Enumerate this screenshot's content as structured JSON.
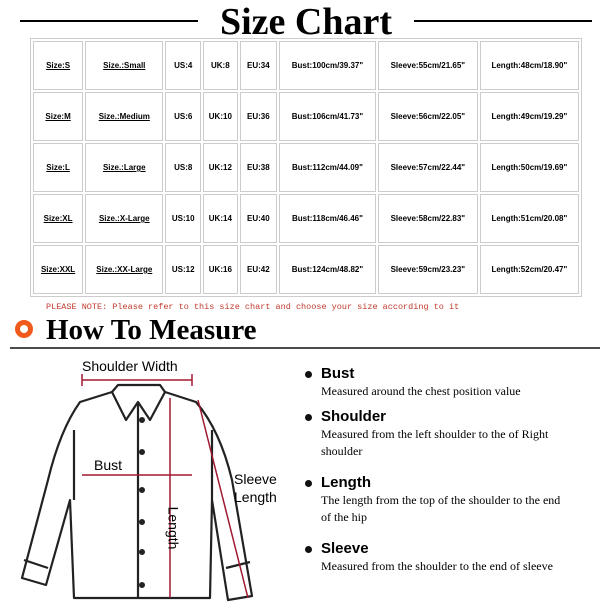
{
  "title": "Size Chart",
  "table": {
    "rows": [
      [
        "Size:S",
        "Size.:Small",
        "US:4",
        "UK:8",
        "EU:34",
        "Bust:100cm/39.37\"",
        "Sleeve:55cm/21.65\"",
        "Length:48cm/18.90\""
      ],
      [
        "Size:M",
        "Size.:Medium",
        "US:6",
        "UK:10",
        "EU:36",
        "Bust:106cm/41.73\"",
        "Sleeve:56cm/22.05\"",
        "Length:49cm/19.29\""
      ],
      [
        "Size:L",
        "Size.:Large",
        "US:8",
        "UK:12",
        "EU:38",
        "Bust:112cm/44.09\"",
        "Sleeve:57cm/22.44\"",
        "Length:50cm/19.69\""
      ],
      [
        "Size:XL",
        "Size.:X-Large",
        "US:10",
        "UK:14",
        "EU:40",
        "Bust:118cm/46.46\"",
        "Sleeve:58cm/22.83\"",
        "Length:51cm/20.08\""
      ],
      [
        "Size:XXL",
        "Size.:XX-Large",
        "US:12",
        "UK:16",
        "EU:42",
        "Bust:124cm/48.82\"",
        "Sleeve:59cm/23.23\"",
        "Length:52cm/20.47\""
      ]
    ]
  },
  "note": "PLEASE NOTE: Please refer to this size chart and choose your size according to it",
  "measure": {
    "heading": "How To Measure",
    "diagram": {
      "shoulder": "Shoulder Width",
      "bust": "Bust",
      "length": "Length",
      "sleeve": "Sleeve Length"
    },
    "items": [
      {
        "title": "Bust",
        "text": "Measured around the chest position value"
      },
      {
        "title": "Shoulder",
        "text": "Measured from the left shoulder to the of Right shoulder"
      },
      {
        "title": "Length",
        "text": "The length from the top of the shoulder to the end of the hip"
      },
      {
        "title": "Sleeve",
        "text": "Measured from the shoulder to the end of sleeve"
      }
    ]
  }
}
